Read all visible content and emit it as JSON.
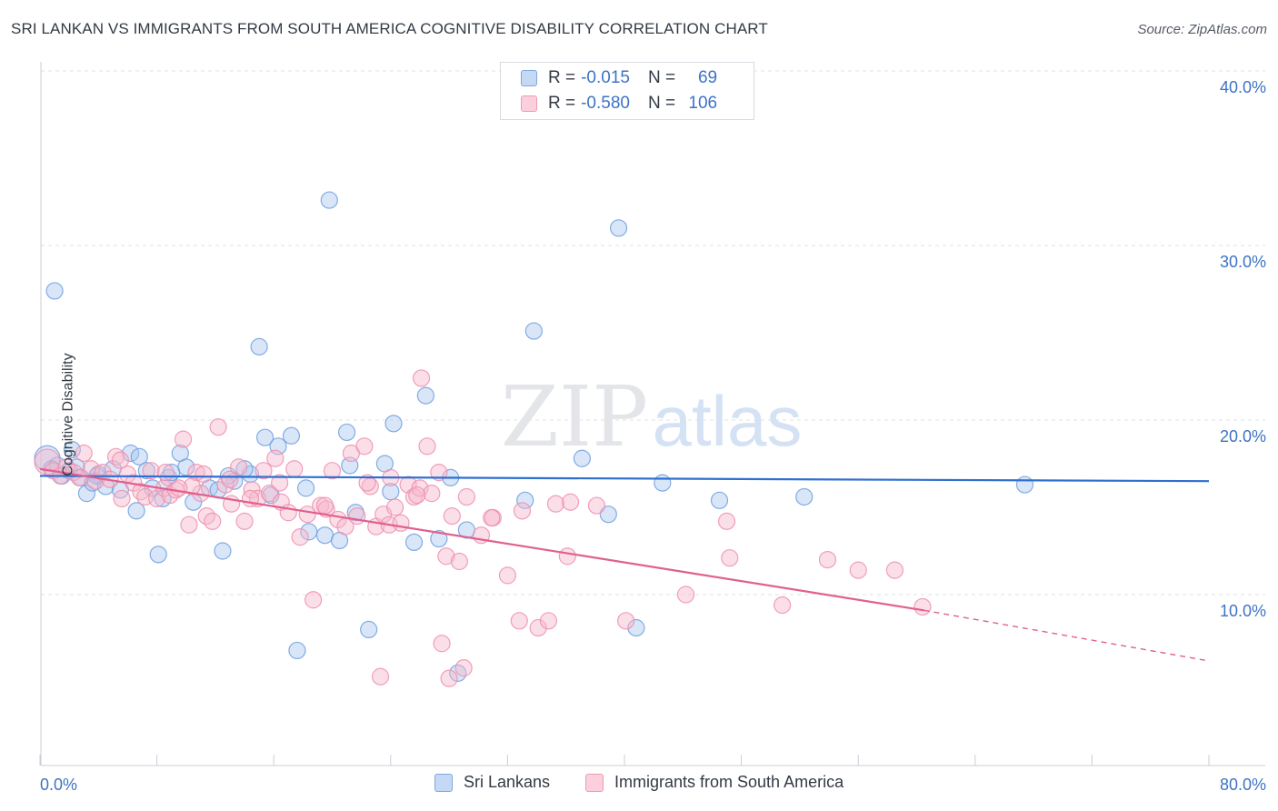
{
  "header": {
    "title": "SRI LANKAN VS IMMIGRANTS FROM SOUTH AMERICA COGNITIVE DISABILITY CORRELATION CHART",
    "source": "Source: ZipAtlas.com"
  },
  "watermark": {
    "part1": "ZIP",
    "part2": "atlas"
  },
  "legend": {
    "rows": [
      {
        "r_label": "R =",
        "r_value": "-0.015",
        "n_label": "N =",
        "n_value": "69",
        "color": "#aac8f0"
      },
      {
        "r_label": "R =",
        "r_value": "-0.580",
        "n_label": "N =",
        "n_value": "106",
        "color": "#f7b8cb"
      }
    ]
  },
  "chart_data": {
    "type": "scatter",
    "title": "SRI LANKAN VS IMMIGRANTS FROM SOUTH AMERICA COGNITIVE DISABILITY CORRELATION CHART",
    "xlabel": "",
    "ylabel": "Cognitive Disability",
    "xlim": [
      0,
      80
    ],
    "ylim": [
      0,
      42
    ],
    "x_tick_labels": [
      "0.0%",
      "80.0%"
    ],
    "y_ticks": [
      10,
      20,
      30,
      40
    ],
    "y_tick_labels": [
      "10.0%",
      "20.0%",
      "30.0%",
      "40.0%"
    ],
    "grid": "horizontal dashed",
    "legend_position": "top-center",
    "series": [
      {
        "name": "Sri Lankans",
        "color": "#aac8f0",
        "stroke": "#6f9fe0",
        "line_color": "#2e6fd0",
        "trend": {
          "x": [
            0,
            80
          ],
          "y": [
            16.8,
            16.5
          ]
        },
        "x": [
          0.5,
          0.8,
          1.2,
          1.5,
          2.0,
          2.5,
          2.8,
          3.2,
          3.6,
          4.0,
          4.5,
          5.0,
          5.5,
          6.2,
          6.8,
          7.3,
          7.7,
          8.4,
          8.8,
          9.6,
          10.0,
          10.5,
          11.6,
          12.2,
          12.5,
          13.3,
          14.4,
          15.0,
          15.4,
          15.8,
          16.3,
          17.2,
          17.6,
          18.4,
          19.5,
          19.8,
          20.5,
          21.2,
          21.6,
          22.5,
          23.6,
          24.2,
          25.6,
          26.4,
          27.3,
          28.1,
          29.2,
          33.2,
          33.8,
          37.1,
          38.9,
          39.6,
          40.8,
          42.6,
          46.5,
          52.3,
          67.4,
          1.0,
          2.2,
          3.9,
          6.6,
          8.1,
          9.0,
          12.9,
          14.0,
          18.2,
          21.0,
          24.0,
          28.6
        ],
        "y": [
          17.8,
          17.2,
          17.4,
          16.8,
          17.1,
          17.3,
          16.7,
          15.8,
          16.4,
          16.9,
          16.2,
          17.2,
          16.0,
          18.1,
          17.9,
          17.1,
          16.1,
          15.5,
          16.7,
          18.1,
          17.3,
          15.3,
          16.1,
          16.0,
          12.5,
          16.5,
          16.9,
          24.2,
          19.0,
          15.7,
          18.5,
          19.1,
          6.8,
          13.6,
          13.4,
          32.6,
          13.1,
          17.4,
          14.7,
          8.0,
          17.5,
          19.8,
          13.0,
          21.4,
          13.2,
          16.7,
          13.7,
          15.4,
          25.1,
          17.8,
          14.6,
          31.0,
          8.1,
          16.4,
          15.4,
          15.6,
          16.3,
          27.4,
          18.3,
          16.8,
          14.8,
          12.3,
          17.0,
          16.8,
          17.2,
          16.1,
          19.3,
          15.9,
          5.5
        ],
        "r": [
          14,
          9,
          9,
          9,
          9,
          9,
          9,
          9,
          9,
          9,
          9,
          9,
          9,
          9,
          9,
          9,
          9,
          9,
          9,
          9,
          9,
          9,
          9,
          9,
          9,
          9,
          9,
          9,
          9,
          9,
          9,
          9,
          9,
          9,
          9,
          9,
          9,
          9,
          9,
          9,
          9,
          9,
          9,
          9,
          9,
          9,
          9,
          9,
          9,
          9,
          9,
          9,
          9,
          9,
          9,
          9,
          9,
          9,
          9,
          9,
          9,
          9,
          9,
          9,
          9,
          9,
          9,
          9,
          9
        ]
      },
      {
        "name": "Immigrants from South America",
        "color": "#f7b8cb",
        "stroke": "#ef8fae",
        "line_color": "#e0608e",
        "trend": {
          "x": [
            0,
            60.5
          ],
          "y": [
            17.2,
            9.1
          ]
        },
        "trend_dashed": {
          "x": [
            60.5,
            80
          ],
          "y": [
            9.1,
            6.2
          ]
        },
        "x": [
          0.5,
          0.9,
          1.4,
          1.8,
          2.3,
          2.7,
          3.0,
          3.5,
          3.8,
          4.3,
          4.8,
          5.2,
          5.6,
          6.0,
          6.4,
          6.9,
          7.2,
          7.6,
          8.0,
          8.5,
          8.9,
          9.3,
          9.8,
          10.2,
          10.7,
          11.0,
          11.4,
          11.8,
          12.2,
          12.7,
          13.1,
          13.6,
          14.0,
          14.5,
          14.9,
          15.3,
          15.7,
          16.1,
          16.5,
          17.0,
          17.4,
          17.8,
          18.3,
          18.7,
          19.2,
          19.6,
          20.0,
          20.4,
          20.9,
          21.3,
          21.7,
          22.2,
          22.6,
          23.0,
          23.5,
          23.9,
          24.3,
          24.7,
          25.2,
          25.6,
          26.0,
          26.5,
          26.8,
          27.3,
          27.8,
          28.2,
          28.7,
          29.2,
          30.2,
          31.0,
          32.0,
          33.0,
          34.1,
          35.3,
          36.1,
          38.1,
          40.1,
          44.2,
          47.2,
          50.8,
          53.9,
          56.0,
          60.4,
          5.5,
          8.6,
          10.4,
          11.2,
          13.0,
          14.4,
          16.4,
          19.5,
          22.4,
          24.0,
          25.8,
          26.1,
          27.5,
          28.0,
          29.0,
          30.9,
          32.8,
          34.8,
          36.3,
          47.0,
          58.5,
          9.5,
          23.3
        ],
        "y": [
          17.6,
          17.1,
          16.8,
          17.3,
          17.0,
          16.7,
          18.1,
          17.2,
          16.5,
          17.0,
          16.6,
          17.9,
          15.5,
          16.9,
          16.4,
          15.9,
          15.6,
          17.1,
          15.5,
          16.1,
          15.7,
          16.0,
          18.9,
          14.0,
          17.0,
          15.8,
          14.5,
          14.2,
          19.6,
          16.3,
          15.2,
          17.3,
          14.2,
          16.0,
          15.5,
          17.1,
          15.8,
          17.8,
          15.3,
          14.7,
          17.2,
          13.3,
          14.6,
          9.7,
          15.1,
          14.9,
          17.1,
          14.3,
          13.9,
          18.1,
          14.5,
          18.5,
          16.2,
          13.9,
          14.6,
          14.0,
          15.0,
          14.1,
          16.3,
          15.6,
          16.1,
          18.5,
          15.8,
          17.0,
          12.2,
          14.5,
          11.9,
          15.6,
          13.4,
          14.4,
          11.1,
          14.8,
          8.1,
          15.2,
          12.2,
          15.1,
          8.5,
          10.0,
          12.1,
          9.4,
          12.0,
          11.4,
          9.3,
          17.7,
          17.0,
          16.2,
          16.9,
          16.6,
          15.5,
          16.4,
          15.1,
          16.4,
          16.7,
          15.7,
          22.4,
          7.2,
          5.2,
          5.8,
          14.4,
          8.5,
          8.5,
          15.3,
          14.2,
          11.4,
          16.1,
          5.3
        ],
        "r": [
          14,
          9,
          9,
          9,
          9,
          9,
          9,
          9,
          9,
          9,
          9,
          9,
          9,
          9,
          9,
          9,
          9,
          9,
          9,
          9,
          9,
          9,
          9,
          9,
          9,
          9,
          9,
          9,
          9,
          9,
          9,
          9,
          9,
          9,
          9,
          9,
          9,
          9,
          9,
          9,
          9,
          9,
          9,
          9,
          9,
          9,
          9,
          9,
          9,
          9,
          9,
          9,
          9,
          9,
          9,
          9,
          9,
          9,
          9,
          9,
          9,
          9,
          9,
          9,
          9,
          9,
          9,
          9,
          9,
          9,
          9,
          9,
          9,
          9,
          9,
          9,
          9,
          9,
          9,
          9,
          9,
          9,
          9,
          9,
          9,
          9,
          9,
          9,
          9,
          9,
          9,
          9,
          9,
          9,
          9,
          9,
          9,
          9,
          9,
          9,
          9,
          9,
          9,
          9,
          9,
          9
        ]
      }
    ]
  },
  "bottom_legend": {
    "items": [
      {
        "label": "Sri Lankans",
        "color": "#aac8f0"
      },
      {
        "label": "Immigrants from South America",
        "color": "#f7b8cb"
      }
    ]
  }
}
